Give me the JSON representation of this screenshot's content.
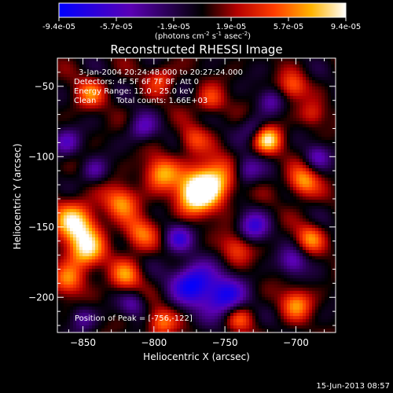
{
  "colorbar": {
    "tick_labels": [
      "-9.4e-05",
      "-5.7e-05",
      "-1.9e-05",
      "1.9e-05",
      "5.7e-05",
      "9.4e-05"
    ],
    "units_prefix": "(photons cm",
    "units_exp1": "-2",
    "units_mid": " s",
    "units_exp2": "-1",
    "units_mid2": " asec",
    "units_exp3": "-2",
    "units_suffix": ")",
    "range": [
      -9.4e-05,
      9.4e-05
    ]
  },
  "chart_data": {
    "type": "heatmap",
    "title": "Reconstructed RHESSI Image",
    "xlabel": "Heliocentric X (arcsec)",
    "ylabel": "Heliocentric Y (arcsec)",
    "xlim": [
      -868,
      -672
    ],
    "ylim": [
      -225,
      -30
    ],
    "x_ticks": [
      -850,
      -800,
      -750,
      -700
    ],
    "y_ticks": [
      -50,
      -100,
      -150,
      -200
    ],
    "x_tick_labels": [
      "−850",
      "−800",
      "−750",
      "−700"
    ],
    "y_tick_labels": [
      "−50",
      "−100",
      "−150",
      "−200"
    ],
    "annotations": [
      "3-Jan-2004 20:24:48.000 to 20:27:24.000",
      "Detectors: 4F 5F 6F 7F 8F, Att 0",
      "Energy Range: 12.0 - 25.0 keV",
      "Clean",
      "Total counts: 1.66E+03"
    ],
    "peak_label": "Position of Peak = [-756,-122]",
    "peak": [
      -756,
      -122
    ],
    "blobs": [
      {
        "x": -760,
        "y": -118,
        "v": 9.4e-05,
        "r": 16
      },
      {
        "x": -772,
        "y": -128,
        "v": 7.5e-05,
        "r": 14
      },
      {
        "x": -795,
        "y": -112,
        "v": 6.5e-05,
        "r": 12
      },
      {
        "x": -855,
        "y": -148,
        "v": 8.5e-05,
        "r": 16
      },
      {
        "x": -848,
        "y": -168,
        "v": 7e-05,
        "r": 13
      },
      {
        "x": -860,
        "y": -188,
        "v": 5.5e-05,
        "r": 11
      },
      {
        "x": -823,
        "y": -132,
        "v": 6e-05,
        "r": 12
      },
      {
        "x": -810,
        "y": -155,
        "v": 5.5e-05,
        "r": 12
      },
      {
        "x": -820,
        "y": -185,
        "v": 5.5e-05,
        "r": 11
      },
      {
        "x": -720,
        "y": -88,
        "v": 8e-05,
        "r": 10
      },
      {
        "x": -695,
        "y": -118,
        "v": 6.5e-05,
        "r": 11
      },
      {
        "x": -690,
        "y": -158,
        "v": 5.5e-05,
        "r": 10
      },
      {
        "x": -742,
        "y": -165,
        "v": 4.5e-05,
        "r": 11
      },
      {
        "x": -700,
        "y": -205,
        "v": 6e-05,
        "r": 11
      },
      {
        "x": -740,
        "y": -215,
        "v": 4.5e-05,
        "r": 10
      },
      {
        "x": -795,
        "y": -218,
        "v": 5.5e-05,
        "r": 10
      },
      {
        "x": -845,
        "y": -55,
        "v": 5e-05,
        "r": 11
      },
      {
        "x": -795,
        "y": -45,
        "v": 4e-05,
        "r": 10
      },
      {
        "x": -760,
        "y": -60,
        "v": 4.5e-05,
        "r": 10
      },
      {
        "x": -702,
        "y": -50,
        "v": 5e-05,
        "r": 10
      },
      {
        "x": -773,
        "y": -88,
        "v": 4e-05,
        "r": 10
      },
      {
        "x": -688,
        "y": -70,
        "v": 3.5e-05,
        "r": 9
      },
      {
        "x": -772,
        "y": -190,
        "v": -9e-05,
        "r": 15
      },
      {
        "x": -750,
        "y": -200,
        "v": -8e-05,
        "r": 14
      },
      {
        "x": -730,
        "y": -150,
        "v": -6e-05,
        "r": 11
      },
      {
        "x": -702,
        "y": -175,
        "v": -5e-05,
        "r": 10
      },
      {
        "x": -735,
        "y": -110,
        "v": -5e-05,
        "r": 10
      },
      {
        "x": -808,
        "y": -80,
        "v": -4.5e-05,
        "r": 10
      },
      {
        "x": -862,
        "y": -90,
        "v": -5e-05,
        "r": 10
      },
      {
        "x": -842,
        "y": -110,
        "v": -4e-05,
        "r": 9
      },
      {
        "x": -783,
        "y": -158,
        "v": -6e-05,
        "r": 10
      },
      {
        "x": -815,
        "y": -205,
        "v": -4e-05,
        "r": 9
      },
      {
        "x": -685,
        "y": -100,
        "v": -4.5e-05,
        "r": 9
      },
      {
        "x": -718,
        "y": -60,
        "v": -4e-05,
        "r": 9
      },
      {
        "x": -730,
        "y": -80,
        "v": -3.5e-05,
        "r": 9
      },
      {
        "x": -850,
        "y": -215,
        "v": -4e-05,
        "r": 9
      }
    ]
  },
  "footer": {
    "date": "15-Jun-2013 08:57"
  }
}
